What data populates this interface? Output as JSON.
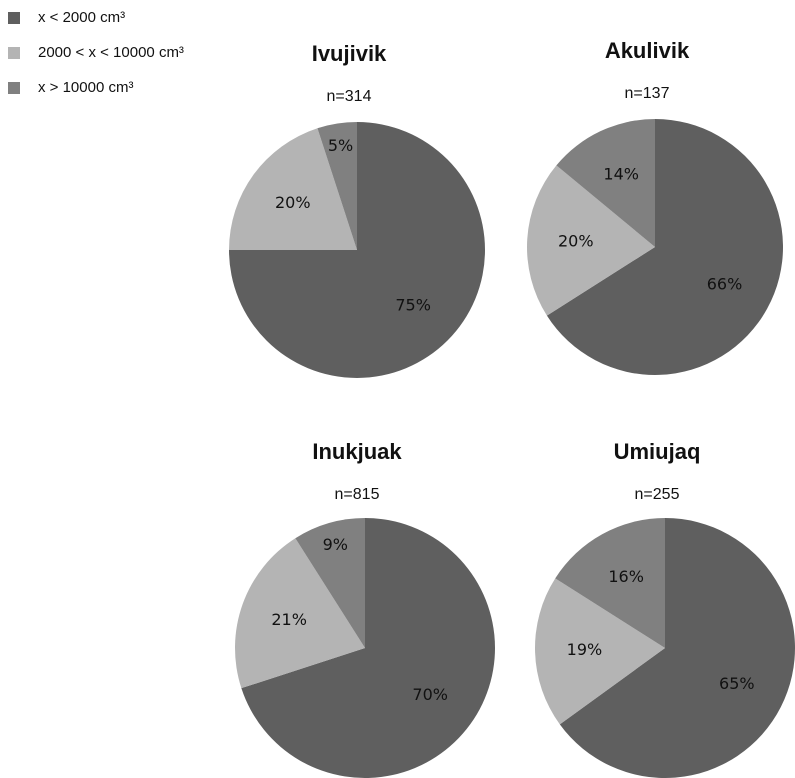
{
  "legend": {
    "categories": [
      "x < 2000 cm³",
      "2000 < x < 10000 cm³",
      "x > 10000 cm³"
    ],
    "colors": [
      "#5f5f5f",
      "#b4b4b4",
      "#808080"
    ]
  },
  "chart_data": [
    {
      "type": "pie",
      "title": "Ivujivik",
      "subtitle": "n=314",
      "values": [
        75,
        20,
        5
      ],
      "value_labels": [
        "75%",
        "20%",
        "5%"
      ]
    },
    {
      "type": "pie",
      "title": "Akulivik",
      "subtitle": "n=137",
      "values": [
        66,
        20,
        14
      ],
      "value_labels": [
        "66%",
        "20%",
        "14%"
      ]
    },
    {
      "type": "pie",
      "title": "Inukjuak",
      "subtitle": "n=815",
      "values": [
        70,
        21,
        9
      ],
      "value_labels": [
        "70%",
        "21%",
        "9%"
      ]
    },
    {
      "type": "pie",
      "title": "Umiujaq",
      "subtitle": "n=255",
      "values": [
        65,
        19,
        16
      ],
      "value_labels": [
        "65%",
        "19%",
        "16%"
      ]
    }
  ]
}
